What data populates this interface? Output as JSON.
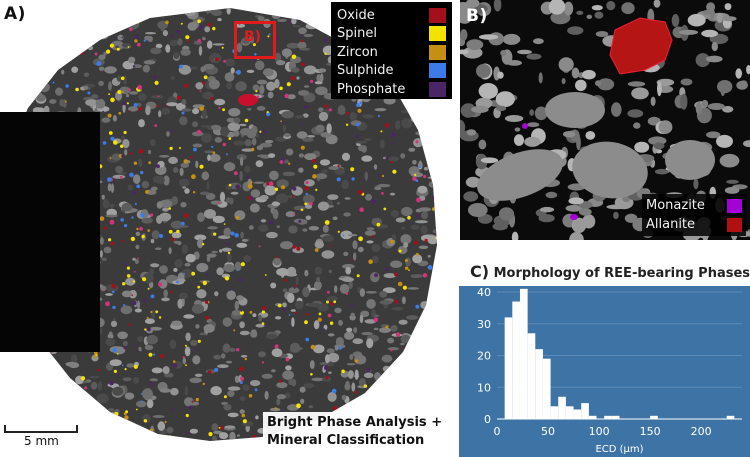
{
  "panel_a": {
    "label": "A)",
    "inset_label": "B)",
    "legend": [
      {
        "label": "Oxide",
        "color": "#a3101c"
      },
      {
        "label": "Spinel",
        "color": "#f4e200"
      },
      {
        "label": "Zircon",
        "color": "#c58f11"
      },
      {
        "label": "Sulphide",
        "color": "#3d7be8"
      },
      {
        "label": "Phosphate",
        "color": "#4b2566"
      }
    ],
    "scale_label": "5 mm",
    "caption_line1": "Bright Phase Analysis +",
    "caption_line2": "Mineral Classification"
  },
  "panel_b": {
    "label": "B)",
    "legend": [
      {
        "label": "Monazite",
        "color": "#a400d6"
      },
      {
        "label": "Allanite",
        "color": "#b01010"
      }
    ]
  },
  "panel_c": {
    "label": "C)",
    "title": "Morphology of REE-bearing Phases"
  },
  "chart_data": {
    "type": "bar",
    "title": "Morphology of REE-bearing Phases",
    "xlabel": "ECD (µm)",
    "ylabel": "",
    "xlim": [
      0,
      240
    ],
    "ylim": [
      0,
      40
    ],
    "xticks": [
      0,
      50,
      100,
      150,
      200
    ],
    "yticks": [
      0,
      10,
      20,
      30,
      40
    ],
    "bin_width": 7.5,
    "bins": [
      {
        "x0": 7.5,
        "value": 32
      },
      {
        "x0": 15,
        "value": 37
      },
      {
        "x0": 22.5,
        "value": 41
      },
      {
        "x0": 30,
        "value": 27
      },
      {
        "x0": 37.5,
        "value": 22
      },
      {
        "x0": 45,
        "value": 19
      },
      {
        "x0": 52.5,
        "value": 4
      },
      {
        "x0": 60,
        "value": 7
      },
      {
        "x0": 67.5,
        "value": 4
      },
      {
        "x0": 75,
        "value": 3
      },
      {
        "x0": 82.5,
        "value": 5
      },
      {
        "x0": 90,
        "value": 1
      },
      {
        "x0": 105,
        "value": 1
      },
      {
        "x0": 112.5,
        "value": 1
      },
      {
        "x0": 150,
        "value": 1
      },
      {
        "x0": 225,
        "value": 1
      }
    ],
    "colors": {
      "background": "#3e73a6",
      "bar": "#ffffff",
      "grid": "#5c8ab6"
    }
  }
}
